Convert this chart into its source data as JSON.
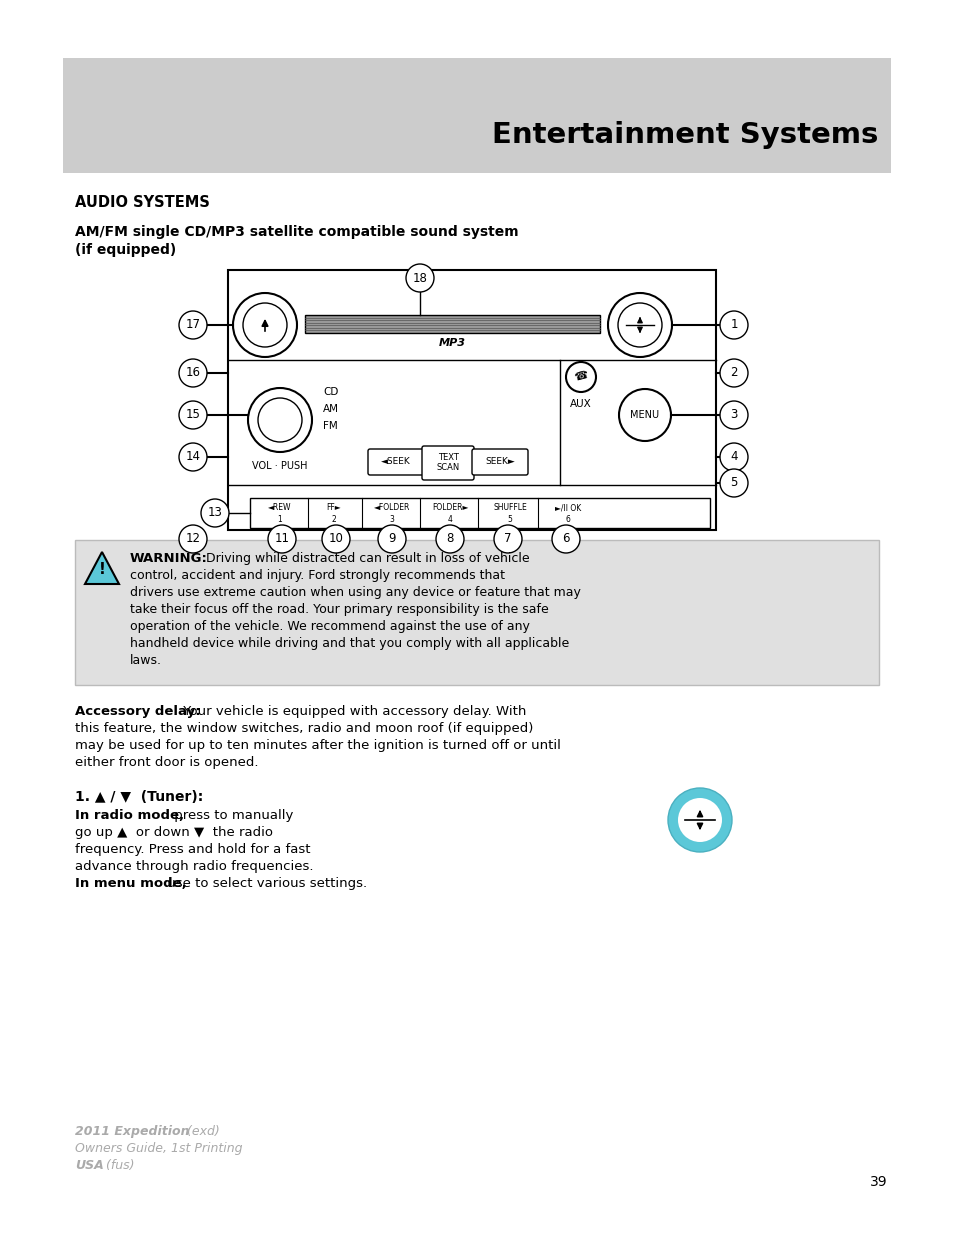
{
  "page_bg": "#ffffff",
  "header_bg": "#cccccc",
  "header_title": "Entertainment Systems",
  "section_title": "AUDIO SYSTEMS",
  "subsection_title": "AM/FM single CD/MP3 satellite compatible sound system\n(if equipped)",
  "warning_title": "WARNING:",
  "footer_line1a": "2011 Expedition",
  "footer_line1b": " (exd)",
  "footer_line2": "Owners Guide, 1st Printing",
  "footer_line3a": "USA",
  "footer_line3b": " (fus)",
  "page_number": "39"
}
